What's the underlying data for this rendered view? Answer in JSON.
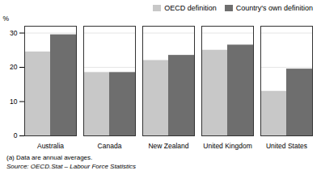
{
  "chart_data": {
    "type": "bar",
    "categories": [
      "Australia",
      "Canada",
      "New Zealand",
      "United Kingdom",
      "United States"
    ],
    "series": [
      {
        "name": "OECD definition",
        "color": "#c8c8c8",
        "values": [
          24.5,
          18.5,
          22.0,
          25.0,
          13.0
        ]
      },
      {
        "name": "Country's own definition",
        "color": "#6e6e6e",
        "values": [
          29.5,
          18.5,
          23.5,
          26.5,
          19.5
        ]
      }
    ],
    "ylabel": "%",
    "ylim": [
      0,
      32
    ],
    "yticks": [
      0,
      10,
      20,
      30
    ],
    "grid": true,
    "legend": "upper right",
    "annotations": [
      "(a) Data are annual averages.",
      "Source: OECD.Stat – Labour Force Statistics"
    ]
  }
}
